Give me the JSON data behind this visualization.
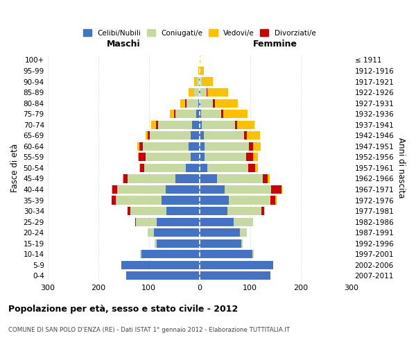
{
  "age_groups": [
    "0-4",
    "5-9",
    "10-14",
    "15-19",
    "20-24",
    "25-29",
    "30-34",
    "35-39",
    "40-44",
    "45-49",
    "50-54",
    "55-59",
    "60-64",
    "65-69",
    "70-74",
    "75-79",
    "80-84",
    "85-89",
    "90-94",
    "95-99",
    "100+"
  ],
  "birth_years": [
    "2007-2011",
    "2002-2006",
    "1997-2001",
    "1992-1996",
    "1987-1991",
    "1982-1986",
    "1977-1981",
    "1972-1976",
    "1967-1971",
    "1962-1966",
    "1957-1961",
    "1952-1956",
    "1947-1951",
    "1942-1946",
    "1937-1941",
    "1932-1936",
    "1927-1931",
    "1922-1926",
    "1917-1921",
    "1912-1916",
    "≤ 1911"
  ],
  "colors": {
    "celibe": "#4472c4",
    "coniugato": "#c5d9a0",
    "vedovo": "#ffc000",
    "divorziato": "#cc0000",
    "background": "#ffffff",
    "grid": "#cccccc"
  },
  "males": {
    "celibe": [
      145,
      155,
      115,
      85,
      90,
      85,
      65,
      75,
      67,
      47,
      27,
      18,
      22,
      18,
      14,
      6,
      3,
      1,
      1,
      0,
      0
    ],
    "coniugato": [
      0,
      0,
      2,
      4,
      12,
      40,
      72,
      90,
      95,
      95,
      82,
      88,
      90,
      80,
      68,
      42,
      23,
      10,
      4,
      1,
      0
    ],
    "vedovo": [
      0,
      0,
      0,
      0,
      0,
      0,
      0,
      0,
      1,
      2,
      2,
      2,
      4,
      5,
      10,
      8,
      10,
      10,
      6,
      2,
      0
    ],
    "divorziato": [
      0,
      0,
      0,
      0,
      0,
      2,
      5,
      8,
      10,
      8,
      8,
      14,
      7,
      4,
      4,
      2,
      2,
      0,
      0,
      0,
      0
    ]
  },
  "females": {
    "nubile": [
      140,
      145,
      105,
      82,
      80,
      68,
      55,
      58,
      50,
      35,
      16,
      10,
      10,
      8,
      5,
      3,
      2,
      2,
      0,
      0,
      0
    ],
    "coniugata": [
      0,
      0,
      2,
      4,
      14,
      38,
      68,
      82,
      92,
      90,
      80,
      82,
      88,
      80,
      65,
      40,
      25,
      12,
      5,
      1,
      0
    ],
    "vedova": [
      0,
      0,
      0,
      0,
      0,
      0,
      0,
      2,
      2,
      4,
      6,
      10,
      15,
      25,
      35,
      48,
      45,
      40,
      22,
      8,
      2
    ],
    "divorziata": [
      0,
      0,
      0,
      0,
      0,
      0,
      5,
      10,
      20,
      10,
      14,
      14,
      8,
      6,
      4,
      4,
      4,
      2,
      0,
      0,
      0
    ]
  },
  "xlim": 300,
  "title": "Popolazione per età, sesso e stato civile - 2012",
  "subtitle": "COMUNE DI SAN POLO D'ENZA (RE) - Dati ISTAT 1° gennaio 2012 - Elaborazione TUTTITALIA.IT",
  "ylabel_left": "Fasce di età",
  "ylabel_right": "Anni di nascita",
  "xlabel_maschi": "Maschi",
  "xlabel_femmine": "Femmine"
}
